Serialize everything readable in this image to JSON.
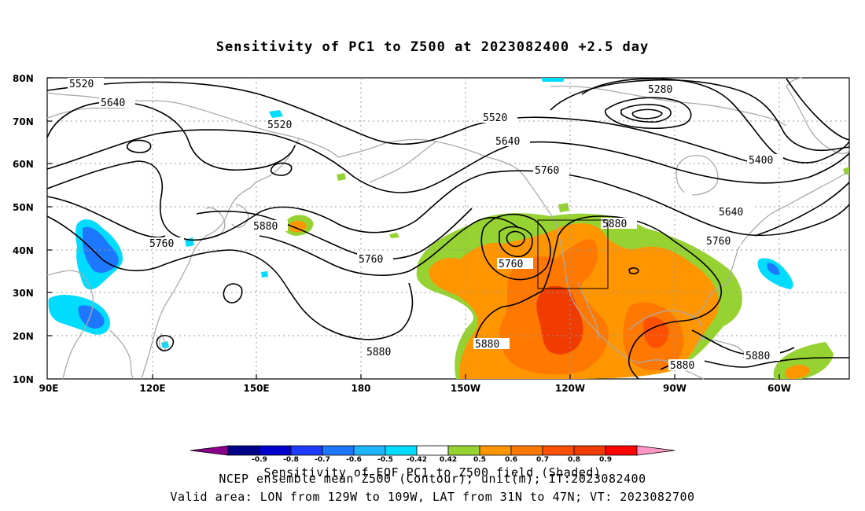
{
  "title": "Sensitivity of PC1 to Z500 at 2023082400 +2.5 day",
  "map": {
    "lat_labels": [
      "80N",
      "70N",
      "60N",
      "50N",
      "40N",
      "30N",
      "20N",
      "10N"
    ],
    "lon_labels": [
      "90E",
      "120E",
      "150E",
      "180",
      "150W",
      "120W",
      "90W",
      "60W"
    ],
    "contour_labels": [
      "5520",
      "5640",
      "5520",
      "5280",
      "5520",
      "5640",
      "5760",
      "5400",
      "5640",
      "5760",
      "5880",
      "5760",
      "5760",
      "5880",
      "5760",
      "5880",
      "5880",
      "5880",
      "5880"
    ],
    "box": {
      "lon_from": "129W",
      "lon_to": "109W",
      "lat_from": "31N",
      "lat_to": "47N"
    }
  },
  "colorbar": {
    "labels": [
      "-0.9",
      "-0.8",
      "-0.7",
      "-0.6",
      "-0.5",
      "-0.42",
      "0.42",
      "0.5",
      "0.6",
      "0.7",
      "0.8",
      "0.9"
    ],
    "colors": [
      "#8b008b",
      "#00008b",
      "#0000cd",
      "#1e3cff",
      "#1e78ff",
      "#1eb4ff",
      "#00dcff",
      "#ffffff",
      "#96d232",
      "#ff9600",
      "#ff7800",
      "#ff5000",
      "#f03c00",
      "#ff0000",
      "#ff96c8"
    ]
  },
  "footer": {
    "line1": "Sensitivity of EOF PC1 to Z500 field (Shaded)",
    "line2": "NCEP ensemble mean Z500 (Contour); unit(m); IT:2023082400",
    "line3": "Valid area: LON from 129W to 109W, LAT from 31N to 47N; VT: 2023082700"
  }
}
